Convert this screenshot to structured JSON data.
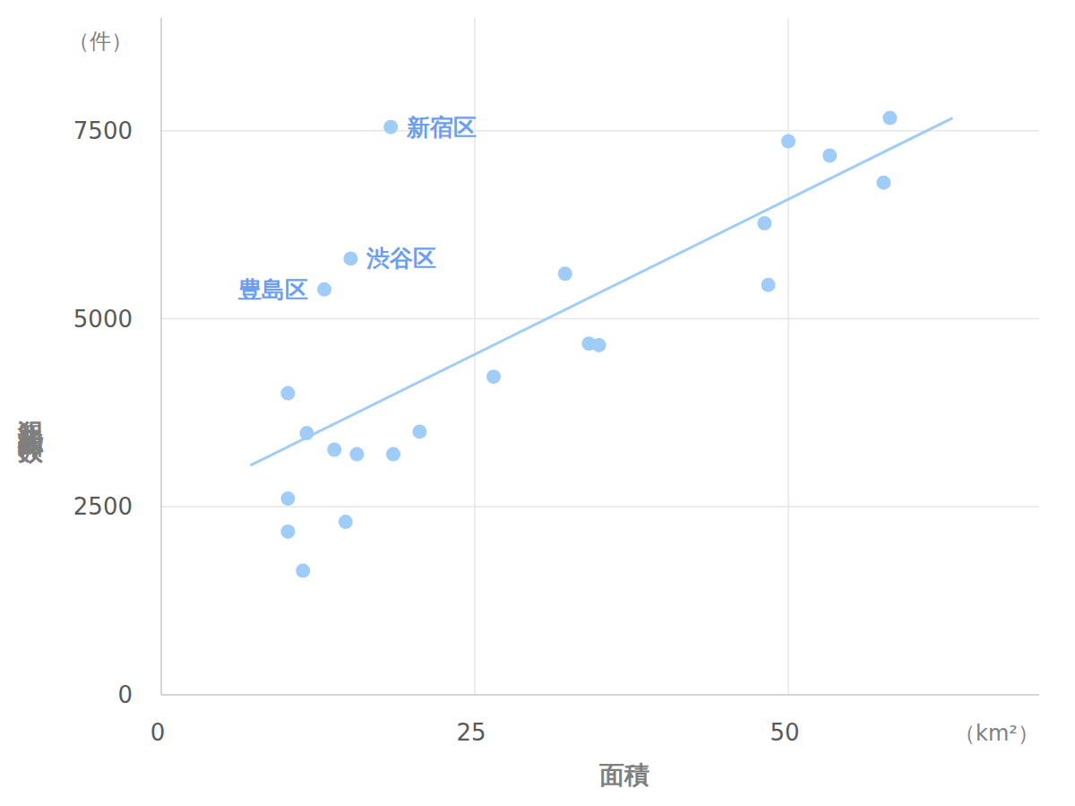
{
  "chart_data": {
    "type": "scatter",
    "x_label": "面積",
    "y_label": "犯罪認知件数",
    "x_unit": "（km²）",
    "y_unit": "（件）",
    "x": [
      18.3,
      15.1,
      13.0,
      10.1,
      11.6,
      13.8,
      15.6,
      18.5,
      20.6,
      10.1,
      10.1,
      14.7,
      11.3,
      26.5,
      32.2,
      34.1,
      34.9,
      48.1,
      48.4,
      50.0,
      53.3,
      57.6,
      58.1
    ],
    "values": [
      7550,
      5800,
      5390,
      4010,
      3480,
      3260,
      3200,
      3200,
      3500,
      2610,
      2170,
      2300,
      1650,
      4230,
      5600,
      4670,
      4650,
      6270,
      5450,
      7360,
      7170,
      6810,
      7670
    ],
    "point_labels": [
      "新宿区",
      "渋谷区",
      "豊島区",
      null,
      null,
      null,
      null,
      null,
      null,
      null,
      null,
      null,
      null,
      null,
      null,
      null,
      null,
      null,
      null,
      null,
      null,
      null,
      null
    ],
    "trendline": {
      "x": [
        7.1,
        63.1
      ],
      "y": [
        3050,
        7670
      ]
    },
    "color": "#9fcdf7",
    "xlim": [
      0,
      70
    ],
    "ylim": [
      0,
      9000
    ],
    "xticks": [
      0,
      25,
      50
    ],
    "yticks": [
      0,
      2500,
      5000,
      7500
    ],
    "grid": true,
    "marker": "circle"
  }
}
